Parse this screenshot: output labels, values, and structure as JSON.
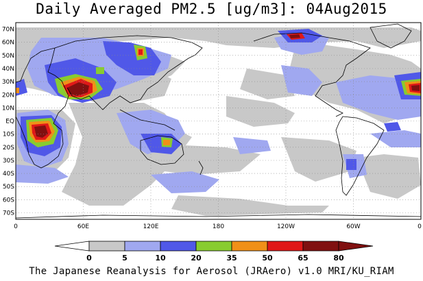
{
  "title": "Daily Averaged PM2.5 [ug/m3]: 04Aug2015",
  "footer": "The Japanese Reanalysis for Aerosol (JRAero) v1.0 MRI/KU_RIAM",
  "map": {
    "lon_labels": [
      "0",
      "60E",
      "120E",
      "180",
      "120W",
      "60W",
      "0"
    ],
    "lat_labels": [
      "70N",
      "60N",
      "50N",
      "40N",
      "30N",
      "20N",
      "10N",
      "EQ",
      "10S",
      "20S",
      "30S",
      "40S",
      "50S",
      "60S",
      "70S"
    ],
    "grid": "dotted",
    "projection": "equirectangular, 0E-360E, 75S-75N"
  },
  "colorbar": {
    "ticks": [
      "0",
      "5",
      "10",
      "20",
      "35",
      "50",
      "65",
      "80"
    ],
    "colors": [
      "#ffffff",
      "#c8c8c8",
      "#a0a8f0",
      "#5058e8",
      "#88cc30",
      "#f09018",
      "#e01818",
      "#801010"
    ],
    "low_arrow_color": "#ffffff",
    "high_arrow_color": "#801010"
  },
  "levels": {
    "gray": "#c8c8c8",
    "lightblue": "#a0a8f0",
    "blue": "#5058e8",
    "green": "#88cc30",
    "orange": "#f09018",
    "red": "#e01818",
    "darkred": "#801010"
  }
}
